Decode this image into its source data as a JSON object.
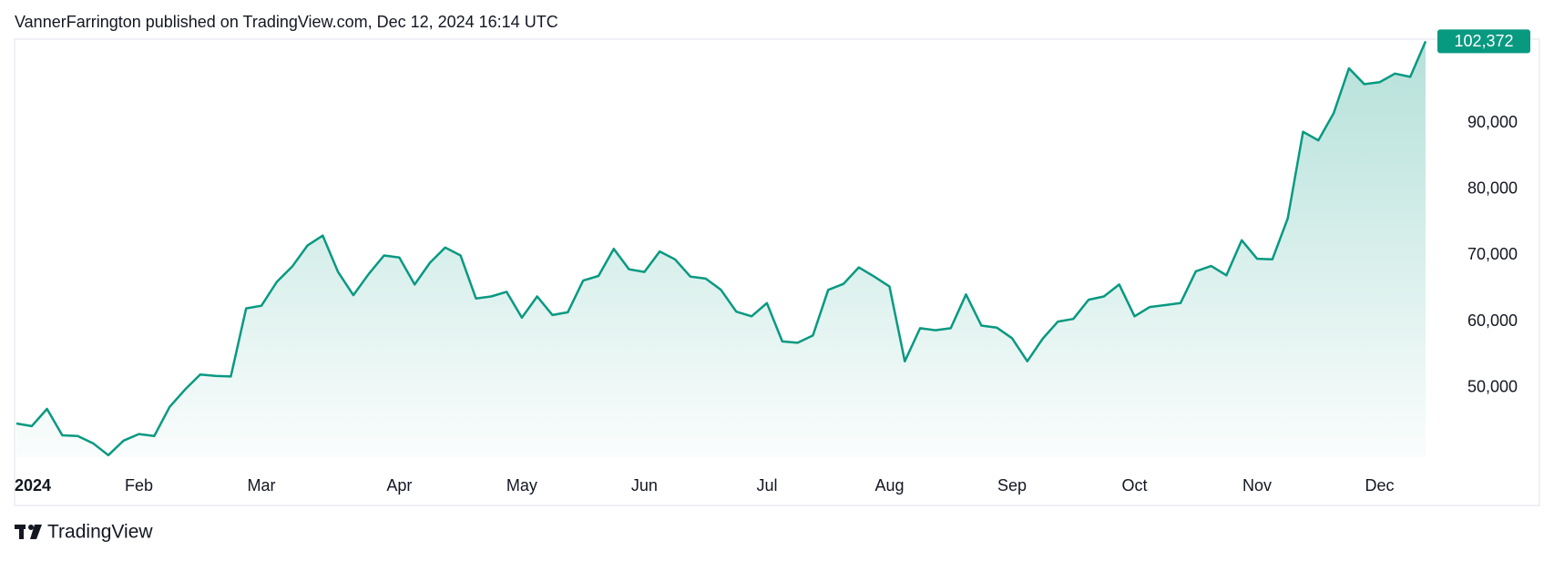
{
  "header": "VannerFarrington published on TradingView.com, Dec 12, 2024 16:14 UTC",
  "footer": "TradingView",
  "chart_data": {
    "type": "line",
    "categories": [
      "2024",
      null,
      null,
      null,
      null,
      null,
      null,
      null,
      "Feb",
      null,
      null,
      null,
      null,
      null,
      null,
      null,
      "Mar",
      null,
      null,
      null,
      null,
      null,
      null,
      null,
      null,
      "Apr",
      null,
      null,
      null,
      null,
      null,
      null,
      null,
      "May",
      null,
      null,
      null,
      null,
      null,
      null,
      null,
      "Jun",
      null,
      null,
      null,
      null,
      null,
      null,
      null,
      "Jul",
      null,
      null,
      null,
      null,
      null,
      null,
      null,
      "Aug",
      null,
      null,
      null,
      null,
      null,
      null,
      null,
      "Sep",
      null,
      null,
      null,
      null,
      null,
      null,
      null,
      "Oct",
      null,
      null,
      null,
      null,
      null,
      null,
      null,
      "Nov",
      null,
      null,
      null,
      null,
      null,
      null,
      null,
      "Dec",
      null,
      null,
      null
    ],
    "series": [
      {
        "color": "#089981",
        "values": [
          44600,
          44200,
          46800,
          42800,
          42700,
          41600,
          39800,
          42000,
          43000,
          42700,
          47100,
          49700,
          52000,
          51800,
          51700,
          62000,
          62400,
          66000,
          68300,
          71500,
          73000,
          67500,
          64000,
          67200,
          70000,
          69700,
          65600,
          68900,
          71200,
          70000,
          63500,
          63800,
          64500,
          60600,
          63800,
          61000,
          61400,
          66200,
          66900,
          71000,
          67900,
          67500,
          70600,
          69400,
          66800,
          66500,
          64800,
          61500,
          60800,
          62800,
          57000,
          56800,
          57900,
          64800,
          65700,
          68200,
          66800,
          65300,
          54000,
          59000,
          58700,
          59000,
          64100,
          59400,
          59100,
          57500,
          54000,
          57400,
          60000,
          60400,
          63300,
          63800,
          65600,
          60800,
          62200,
          62500,
          62800,
          67600,
          68400,
          67000,
          72300,
          69500,
          69400,
          75600,
          88700,
          87400,
          91500,
          98300,
          95900,
          96200,
          97500,
          97000,
          102372
        ],
        "value_labels": [
          null,
          null,
          null,
          null,
          null,
          null,
          null,
          null,
          null,
          null,
          null,
          null,
          null,
          null,
          null,
          null,
          null,
          null,
          null,
          null,
          null,
          null,
          null,
          null,
          null,
          null,
          null,
          null,
          null,
          null,
          null,
          null,
          null,
          null,
          null,
          null,
          null,
          null,
          null,
          null,
          null,
          null,
          null,
          null,
          null,
          null,
          null,
          null,
          null,
          null,
          null,
          null,
          null,
          null,
          null,
          null,
          null,
          null,
          null,
          null,
          null,
          null,
          null,
          null,
          null,
          null,
          null,
          null,
          null,
          null,
          null,
          null,
          null,
          null,
          null,
          null,
          null,
          null,
          null,
          null,
          null,
          null,
          null,
          null,
          null,
          null,
          null,
          null,
          null,
          null,
          null,
          null,
          "102,372"
        ]
      }
    ],
    "ylim": [
      39500,
      102700
    ],
    "yticks": [
      {
        "value": 50000,
        "label": "50,000"
      },
      {
        "value": 60000,
        "label": "60,000"
      },
      {
        "value": 70000,
        "label": "70,000"
      },
      {
        "value": 80000,
        "label": "80,000"
      },
      {
        "value": 90000,
        "label": "90,000"
      }
    ]
  }
}
